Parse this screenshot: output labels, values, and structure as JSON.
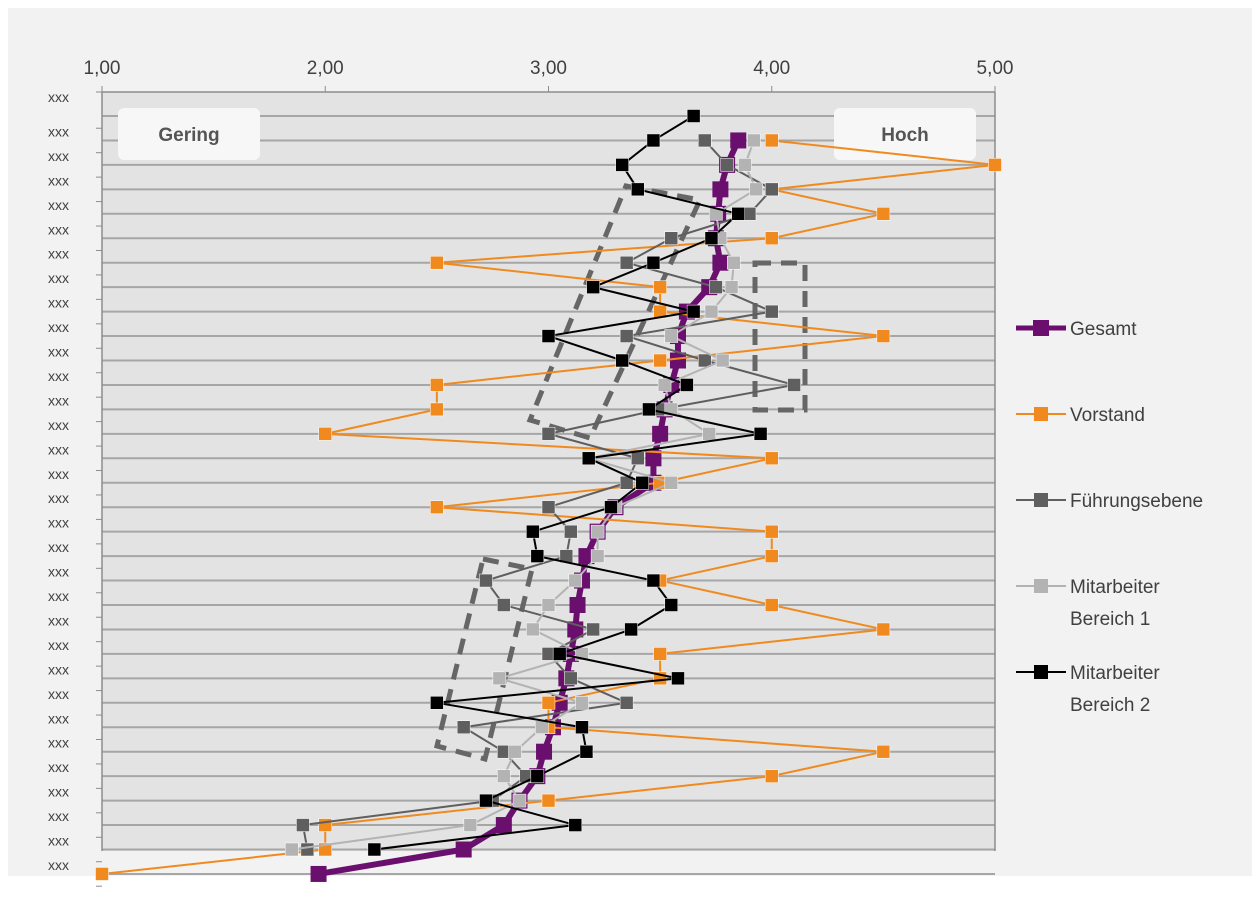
{
  "chart_data": {
    "type": "line",
    "orientation": "horizontal-profile",
    "xlim": [
      1,
      5
    ],
    "x_ticks": [
      "1,00",
      "2,00",
      "3,00",
      "4,00",
      "5,00"
    ],
    "x_tick_values": [
      1,
      2,
      3,
      4,
      5
    ],
    "y_labels": [
      "xxx",
      "xxx",
      "xxx",
      "xxx",
      "xxx",
      "xxx",
      "xxx",
      "xxx",
      "xxx",
      "xxx",
      "xxx",
      "xxx",
      "xxx",
      "xxx",
      "xxx",
      "xxx",
      "xxx",
      "xxx",
      "xxx",
      "xxx",
      "xxx",
      "xxx",
      "xxx",
      "xxx",
      "xxx",
      "xxx",
      "xxx",
      "xxx",
      "xxx",
      "xxx",
      "xxx",
      "xxx"
    ],
    "annotations": {
      "low": "Gering",
      "high": "Hoch"
    },
    "grid": true,
    "legend_position": "right",
    "series": [
      {
        "name": "Gesamt",
        "color": "#6b0f6f",
        "thick": true,
        "values": [
          null,
          3.85,
          3.8,
          3.77,
          3.76,
          3.75,
          3.77,
          3.72,
          3.62,
          3.58,
          3.58,
          3.55,
          3.52,
          3.5,
          3.47,
          3.47,
          3.3,
          3.22,
          3.17,
          3.15,
          3.13,
          3.12,
          3.1,
          3.08,
          3.05,
          3.02,
          2.98,
          2.95,
          2.87,
          2.8,
          2.62,
          1.97
        ]
      },
      {
        "name": "Vorstand",
        "color": "#f08a1e",
        "values": [
          null,
          4.0,
          5.0,
          4.0,
          4.5,
          4.0,
          2.5,
          3.5,
          3.5,
          4.5,
          3.5,
          2.5,
          2.5,
          2.0,
          4.0,
          3.5,
          2.5,
          4.0,
          4.0,
          3.5,
          4.0,
          4.5,
          3.5,
          3.5,
          3.0,
          3.0,
          4.5,
          4.0,
          3.0,
          2.0,
          2.0,
          1.0
        ]
      },
      {
        "name": "Führungsebene",
        "color": "#5f5f5f",
        "values": [
          null,
          3.7,
          3.8,
          4.0,
          3.9,
          3.55,
          3.35,
          3.75,
          4.0,
          3.35,
          3.7,
          4.1,
          3.5,
          3.0,
          3.4,
          3.35,
          3.0,
          3.1,
          3.08,
          2.72,
          2.8,
          3.2,
          3.0,
          3.1,
          3.35,
          2.62,
          2.8,
          2.9,
          2.75,
          1.9,
          1.92,
          null
        ]
      },
      {
        "name": "Mitarbeiter Bereich 1",
        "color": "#b3b3b3",
        "values": [
          null,
          3.92,
          3.88,
          3.93,
          3.75,
          3.77,
          3.83,
          3.82,
          3.73,
          3.55,
          3.78,
          3.52,
          3.55,
          3.72,
          3.18,
          3.55,
          3.3,
          3.22,
          3.22,
          3.12,
          3.0,
          2.93,
          3.15,
          2.78,
          3.15,
          2.97,
          2.85,
          2.8,
          2.87,
          2.65,
          1.85,
          null
        ]
      },
      {
        "name": "Mitarbeiter Bereich 2",
        "color": "#000000",
        "values": [
          3.65,
          3.47,
          3.33,
          3.4,
          3.85,
          3.73,
          3.47,
          3.2,
          3.65,
          3.0,
          3.33,
          3.62,
          3.45,
          3.95,
          3.18,
          3.42,
          3.28,
          2.93,
          2.95,
          3.47,
          3.55,
          3.37,
          3.05,
          3.58,
          2.5,
          3.15,
          3.17,
          2.95,
          2.72,
          3.12,
          2.22,
          null
        ]
      }
    ]
  },
  "legend_labels": [
    "Gesamt",
    "Vorstand",
    "Führungsebene",
    "Mitarbeiter",
    "Bereich 1",
    "Mitarbeiter",
    "Bereich 2"
  ]
}
